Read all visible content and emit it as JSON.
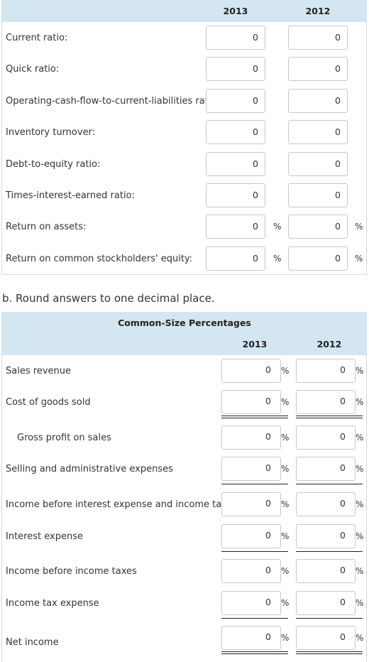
{
  "section_a": {
    "years": [
      "2013",
      "2012"
    ],
    "rows": [
      {
        "label": "Current ratio:",
        "v2013": "0",
        "v2012": "0",
        "pct": false
      },
      {
        "label": "Quick ratio:",
        "v2013": "0",
        "v2012": "0",
        "pct": false
      },
      {
        "label": "Operating-cash-flow-to-current-liabilities ratio:",
        "v2013": "0",
        "v2012": "0",
        "pct": false
      },
      {
        "label": "Inventory turnover:",
        "v2013": "0",
        "v2012": "0",
        "pct": false
      },
      {
        "label": "Debt-to-equity ratio:",
        "v2013": "0",
        "v2012": "0",
        "pct": false
      },
      {
        "label": "Times-interest-earned ratio:",
        "v2013": "0",
        "v2012": "0",
        "pct": false
      },
      {
        "label": "Return on assets:",
        "v2013": "0",
        "v2012": "0",
        "pct": true
      },
      {
        "label": "Return on common stockholders' equity:",
        "v2013": "0",
        "v2012": "0",
        "pct": true
      }
    ],
    "percent_symbol": "%"
  },
  "section_b": {
    "instruction": "b. Round answers to one decimal place.",
    "title": "Common-Size Percentages",
    "years": [
      "2013",
      "2012"
    ],
    "percent_symbol": "%",
    "rows": [
      {
        "label": "Sales revenue",
        "v2013": "0",
        "v2012": "0",
        "indent": false,
        "rule": "none"
      },
      {
        "label": "Cost of goods sold",
        "v2013": "0",
        "v2012": "0",
        "indent": false,
        "rule": "double"
      },
      {
        "label": "Gross profit on sales",
        "v2013": "0",
        "v2012": "0",
        "indent": true,
        "rule": "none"
      },
      {
        "label": "Selling and administrative expenses",
        "v2013": "0",
        "v2012": "0",
        "indent": false,
        "rule": "single"
      },
      {
        "label": "Income before interest expense and income taxes",
        "v2013": "0",
        "v2012": "0",
        "indent": false,
        "rule": "none"
      },
      {
        "label": "Interest expense",
        "v2013": "0",
        "v2012": "0",
        "indent": false,
        "rule": "single"
      },
      {
        "label": "Income before income taxes",
        "v2013": "0",
        "v2012": "0",
        "indent": false,
        "rule": "none"
      },
      {
        "label": "Income tax expense",
        "v2013": "0",
        "v2012": "0",
        "indent": false,
        "rule": "single"
      },
      {
        "label": "Net income",
        "v2013": "0",
        "v2012": "0",
        "indent": false,
        "rule": "double"
      }
    ]
  }
}
